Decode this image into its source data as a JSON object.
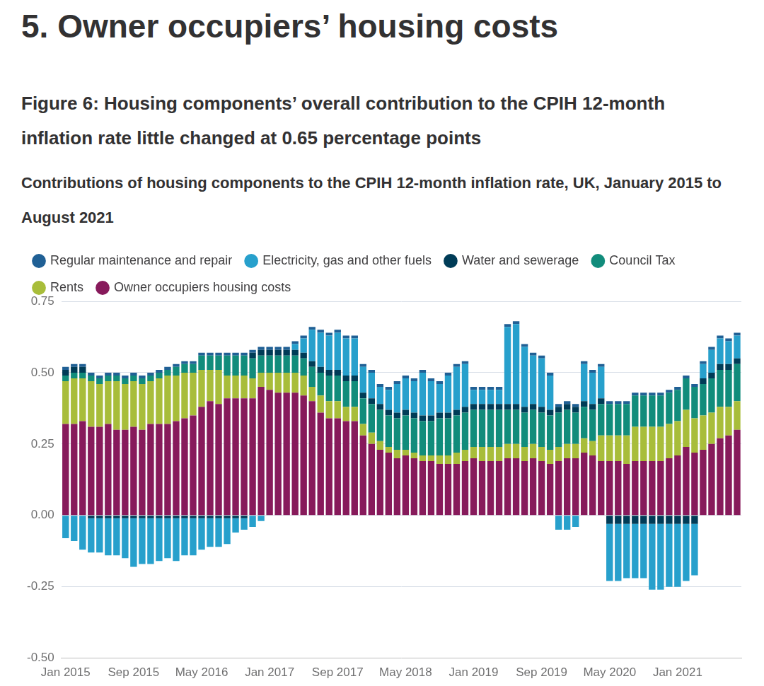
{
  "heading": "5.  Owner occupiers’ housing costs",
  "chart_data": {
    "type": "bar",
    "stacked": true,
    "title": "Figure 6: Housing components’ overall contribution to the CPIH 12-month inflation rate little changed at 0.65 percentage points",
    "subtitle": "Contributions of housing components to the CPIH 12-month inflation rate, UK, January 2015 to August 2021",
    "legend": "top-left",
    "grid": true,
    "ylim": [
      -0.5,
      0.75
    ],
    "yticks": [
      {
        "value": -0.5,
        "label": "-0.50"
      },
      {
        "value": -0.25,
        "label": "-0.25"
      },
      {
        "value": 0,
        "label": "0.00"
      },
      {
        "value": 0.25,
        "label": "0.25"
      },
      {
        "value": 0.5,
        "label": "0.50"
      },
      {
        "value": 0.75,
        "label": "0.75"
      }
    ],
    "categories": [
      "Jan 2015",
      null,
      null,
      null,
      null,
      null,
      null,
      null,
      "Sep 2015",
      null,
      null,
      null,
      null,
      null,
      null,
      null,
      "May 2016",
      null,
      null,
      null,
      null,
      null,
      null,
      null,
      "Jan 2017",
      null,
      null,
      null,
      null,
      null,
      null,
      null,
      "Sep 2017",
      null,
      null,
      null,
      null,
      null,
      null,
      null,
      "May 2018",
      null,
      null,
      null,
      null,
      null,
      null,
      null,
      "Jan 2019",
      null,
      null,
      null,
      null,
      null,
      null,
      null,
      "Sep 2019",
      null,
      null,
      null,
      null,
      null,
      null,
      null,
      "May 2020",
      null,
      null,
      null,
      null,
      null,
      null,
      null,
      "Jan 2021",
      null,
      null,
      null,
      null,
      null,
      null,
      null
    ],
    "series": [
      {
        "name": "Owner occupiers housing costs",
        "color": "#871a5b",
        "values": [
          0.32,
          0.32,
          0.33,
          0.31,
          0.31,
          0.32,
          0.3,
          0.3,
          0.31,
          0.3,
          0.32,
          0.32,
          0.32,
          0.33,
          0.34,
          0.35,
          0.38,
          0.4,
          0.39,
          0.41,
          0.41,
          0.41,
          0.41,
          0.45,
          0.44,
          0.43,
          0.43,
          0.43,
          0.42,
          0.4,
          0.36,
          0.34,
          0.34,
          0.33,
          0.33,
          0.28,
          0.25,
          0.23,
          0.22,
          0.2,
          0.21,
          0.2,
          0.19,
          0.19,
          0.18,
          0.18,
          0.18,
          0.19,
          0.2,
          0.19,
          0.19,
          0.19,
          0.2,
          0.2,
          0.19,
          0.2,
          0.19,
          0.18,
          0.19,
          0.2,
          0.2,
          0.22,
          0.21,
          0.19,
          0.19,
          0.19,
          0.18,
          0.19,
          0.19,
          0.19,
          0.19,
          0.2,
          0.21,
          0.24,
          0.22,
          0.23,
          0.25,
          0.27,
          0.28,
          0.3
        ]
      },
      {
        "name": "Rents",
        "color": "#a8bd3a",
        "values": [
          0.15,
          0.16,
          0.15,
          0.16,
          0.15,
          0.15,
          0.17,
          0.16,
          0.16,
          0.16,
          0.15,
          0.16,
          0.17,
          0.16,
          0.16,
          0.15,
          0.13,
          0.11,
          0.12,
          0.08,
          0.08,
          0.08,
          0.07,
          0.05,
          0.06,
          0.07,
          0.07,
          0.07,
          0.07,
          0.05,
          0.06,
          0.06,
          0.06,
          0.05,
          0.05,
          0.04,
          0.04,
          0.03,
          0.02,
          0.03,
          0.02,
          0.02,
          0.02,
          0.02,
          0.03,
          0.03,
          0.04,
          0.04,
          0.04,
          0.05,
          0.05,
          0.05,
          0.05,
          0.05,
          0.05,
          0.05,
          0.05,
          0.05,
          0.05,
          0.05,
          0.05,
          0.05,
          0.05,
          0.09,
          0.09,
          0.09,
          0.1,
          0.12,
          0.12,
          0.12,
          0.12,
          0.12,
          0.12,
          0.13,
          0.12,
          0.12,
          0.11,
          0.11,
          0.1,
          0.1
        ]
      },
      {
        "name": "Council Tax",
        "color": "#118c7b",
        "values": [
          0.02,
          0.02,
          0.02,
          0.02,
          0.02,
          0.02,
          0.02,
          0.02,
          0.02,
          0.02,
          0.02,
          0.02,
          0.02,
          0.03,
          0.03,
          0.03,
          0.05,
          0.05,
          0.05,
          0.07,
          0.07,
          0.07,
          0.07,
          0.06,
          0.06,
          0.06,
          0.06,
          0.06,
          0.06,
          0.07,
          0.08,
          0.09,
          0.09,
          0.09,
          0.09,
          0.09,
          0.1,
          0.11,
          0.11,
          0.11,
          0.12,
          0.12,
          0.12,
          0.12,
          0.13,
          0.13,
          0.13,
          0.13,
          0.13,
          0.13,
          0.13,
          0.13,
          0.12,
          0.12,
          0.12,
          0.12,
          0.12,
          0.12,
          0.12,
          0.12,
          0.11,
          0.11,
          0.11,
          0.11,
          0.11,
          0.11,
          0.11,
          0.11,
          0.11,
          0.11,
          0.11,
          0.11,
          0.11,
          0.11,
          0.11,
          0.11,
          0.12,
          0.13,
          0.13,
          0.13
        ]
      },
      {
        "name": "Water and sewerage",
        "color": "#003c57",
        "values": [
          0.02,
          0.02,
          0.02,
          -0.01,
          -0.01,
          -0.01,
          -0.01,
          -0.01,
          -0.01,
          -0.01,
          -0.01,
          -0.01,
          -0.01,
          -0.01,
          -0.01,
          -0.01,
          -0.01,
          -0.01,
          -0.01,
          -0.01,
          -0.01,
          -0.01,
          0.02,
          0.02,
          0.02,
          0.02,
          0.02,
          0.02,
          0.02,
          0.02,
          0.02,
          0.02,
          0.02,
          0.02,
          0.02,
          0.02,
          0.02,
          0.02,
          0.02,
          0.02,
          0.02,
          0.02,
          0.02,
          0.02,
          0.02,
          0.02,
          0.02,
          0.02,
          0.02,
          0.02,
          0.02,
          0.02,
          0.02,
          0.02,
          0.02,
          0.02,
          0.02,
          0.02,
          0.02,
          0.02,
          0.02,
          0.02,
          0.02,
          0.02,
          -0.03,
          -0.03,
          -0.03,
          -0.03,
          -0.03,
          -0.03,
          -0.03,
          -0.03,
          -0.03,
          -0.03,
          -0.03,
          0.02,
          0.02,
          0.02,
          0.02,
          0.02
        ]
      },
      {
        "name": "Electricity, gas and other fuels",
        "color": "#27a0cc",
        "values": [
          -0.08,
          -0.09,
          -0.12,
          -0.12,
          -0.12,
          -0.13,
          -0.13,
          -0.14,
          -0.17,
          -0.16,
          -0.16,
          -0.15,
          -0.14,
          -0.15,
          -0.13,
          -0.13,
          -0.11,
          -0.1,
          -0.1,
          -0.09,
          -0.05,
          -0.04,
          -0.04,
          -0.02,
          0.0,
          0.0,
          0.0,
          0.02,
          0.05,
          0.11,
          0.12,
          0.12,
          0.13,
          0.13,
          0.13,
          0.09,
          0.09,
          0.06,
          0.07,
          0.1,
          0.11,
          0.11,
          0.15,
          0.12,
          0.1,
          0.13,
          0.15,
          0.15,
          0.05,
          0.05,
          0.05,
          0.05,
          0.27,
          0.28,
          0.21,
          0.17,
          0.17,
          0.12,
          -0.05,
          -0.05,
          -0.04,
          0.13,
          0.11,
          0.11,
          -0.2,
          -0.2,
          -0.19,
          -0.19,
          -0.19,
          -0.23,
          -0.23,
          -0.22,
          -0.22,
          -0.2,
          -0.18,
          0.05,
          0.08,
          0.09,
          0.08,
          0.08
        ]
      },
      {
        "name": "Regular maintenance and repair",
        "color": "#206095",
        "values": [
          0.01,
          0.01,
          0.01,
          0.01,
          0.01,
          0.01,
          0.01,
          0.01,
          0.01,
          0.01,
          0.01,
          0.01,
          0.01,
          0.01,
          0.01,
          0.01,
          0.01,
          0.01,
          0.01,
          0.01,
          0.01,
          0.01,
          0.01,
          0.01,
          0.01,
          0.01,
          0.01,
          0.01,
          0.01,
          0.01,
          0.01,
          0.01,
          0.01,
          0.01,
          0.01,
          0.01,
          0.01,
          0.01,
          0.01,
          0.01,
          0.01,
          0.01,
          0.01,
          0.01,
          0.01,
          0.01,
          0.01,
          0.01,
          0.01,
          0.01,
          0.01,
          0.01,
          0.01,
          0.01,
          0.01,
          0.01,
          0.01,
          0.01,
          0.01,
          0.01,
          0.01,
          0.01,
          0.01,
          0.01,
          0.01,
          0.01,
          0.01,
          0.01,
          0.01,
          0.01,
          0.01,
          0.01,
          0.01,
          0.01,
          0.01,
          0.01,
          0.01,
          0.01,
          0.01,
          0.01
        ]
      }
    ]
  }
}
